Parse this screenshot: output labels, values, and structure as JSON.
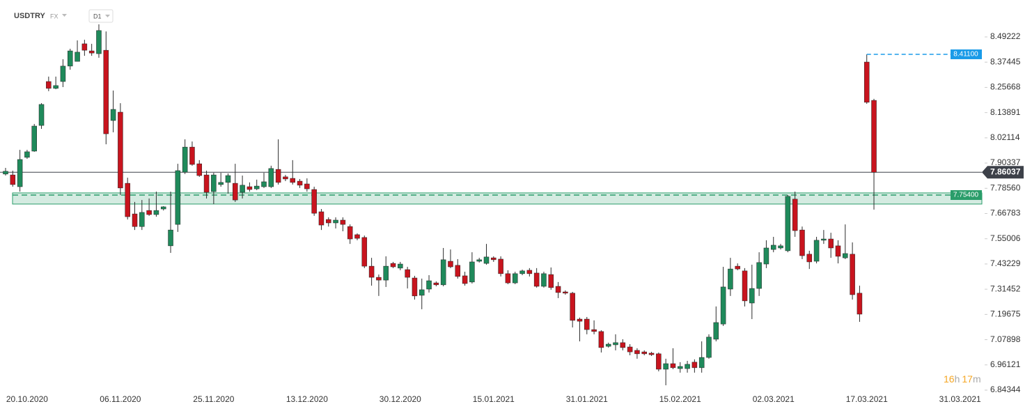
{
  "header": {
    "symbol": "USDTRY",
    "market": "FX",
    "interval": "D1"
  },
  "countdown": [
    "16",
    "h",
    "17",
    "m"
  ],
  "chart_data": {
    "type": "candlestick",
    "up_color": "#1f8a5b",
    "down_color": "#c8141e",
    "wick_color": "#2b2b2b",
    "ylim": [
      6.837,
      8.567
    ],
    "yticks": [
      8.49222,
      8.37445,
      8.25668,
      8.13891,
      8.02114,
      7.90337,
      {
        "value": 7.7856,
        "label": "7.78560"
      },
      7.66783,
      7.55006,
      7.43229,
      7.31452,
      7.19675,
      7.07898,
      6.96121,
      6.84344
    ],
    "grid": false,
    "current_price": {
      "value": 7.86037,
      "label": "7.86037",
      "color": "#3d4149"
    },
    "high_line": {
      "value": 8.411,
      "label": "8.41100",
      "color": "#1a9be8"
    },
    "zone": {
      "value": 7.754,
      "label": "7.75400",
      "top": 7.764,
      "bottom": 7.712,
      "color": "#2a9d6a"
    },
    "categories": [
      null,
      null,
      null,
      "20.10.2020",
      null,
      null,
      null,
      null,
      null,
      null,
      null,
      null,
      null,
      null,
      null,
      null,
      "06.11.2020",
      null,
      null,
      null,
      null,
      null,
      null,
      null,
      null,
      null,
      null,
      null,
      null,
      "25.11.2020",
      null,
      null,
      null,
      null,
      null,
      null,
      null,
      null,
      null,
      null,
      null,
      null,
      "13.12.2020",
      null,
      null,
      null,
      null,
      null,
      null,
      null,
      null,
      null,
      null,
      null,
      null,
      "30.12.2020",
      null,
      null,
      null,
      null,
      null,
      null,
      null,
      null,
      null,
      null,
      null,
      null,
      "15.01.2021",
      null,
      null,
      null,
      null,
      null,
      null,
      null,
      null,
      null,
      null,
      null,
      null,
      "31.01.2021",
      null,
      null,
      null,
      null,
      null,
      null,
      null,
      null,
      null,
      null,
      null,
      null,
      "15.02.2021",
      null,
      null,
      null,
      null,
      null,
      null,
      null,
      null,
      null,
      null,
      null,
      null,
      "02.03.2021",
      null,
      null,
      null,
      null,
      null,
      null,
      null,
      null,
      null,
      null,
      null,
      null,
      "17.03.2021",
      null,
      null,
      null,
      null,
      null,
      null,
      null,
      null,
      null,
      null,
      null,
      null,
      "31.03.2021"
    ],
    "open": [
      7.852,
      7.848,
      7.793,
      7.93,
      7.959,
      8.079,
      8.284,
      8.252,
      8.284,
      8.356,
      8.378,
      8.46,
      8.427,
      8.414,
      8.43,
      8.102,
      8.141,
      7.809,
      7.666,
      7.607,
      7.682,
      7.663,
      7.689,
      7.517,
      7.617,
      7.861,
      7.978,
      7.9,
      7.848,
      7.77,
      7.803,
      7.813,
      7.809,
      7.767,
      7.793,
      7.783,
      7.793,
      7.793,
      7.874,
      7.839,
      7.832,
      7.819,
      7.806,
      7.78,
      7.676,
      7.64,
      7.624,
      7.637,
      7.607,
      7.569,
      7.556,
      7.422,
      7.37,
      7.357,
      7.435,
      7.413,
      7.406,
      7.367,
      7.286,
      7.315,
      7.344,
      7.335,
      7.445,
      7.426,
      7.377,
      7.348,
      7.445,
      7.435,
      7.461,
      7.455,
      7.387,
      7.344,
      7.387,
      7.403,
      7.39,
      7.328,
      7.383,
      7.328,
      7.302,
      7.296,
      7.175,
      7.175,
      7.126,
      7.117,
      7.048,
      7.055,
      7.065,
      7.045,
      7.029,
      7.022,
      7.016,
      7.013,
      6.941,
      6.967,
      6.944,
      6.944,
      6.974,
      6.948,
      6.996,
      7.081,
      7.152,
      7.315,
      7.422,
      7.4,
      7.25,
      7.318,
      7.432,
      7.5,
      7.507,
      7.494,
      7.735,
      7.591,
      7.478,
      7.445,
      7.543,
      7.549,
      7.517,
      7.461,
      7.478,
      7.296,
      8.375,
      8.196,
      null,
      null,
      null,
      null,
      null,
      null,
      null,
      null,
      null,
      null,
      null,
      null
    ],
    "high": [
      7.881,
      7.868,
      7.965,
      7.965,
      8.086,
      8.183,
      8.307,
      8.307,
      8.388,
      8.437,
      8.476,
      8.479,
      8.46,
      8.551,
      8.518,
      8.242,
      8.183,
      7.835,
      7.722,
      7.731,
      7.738,
      7.77,
      7.702,
      7.77,
      7.9,
      8.014,
      8.004,
      7.917,
      7.868,
      7.858,
      7.858,
      7.855,
      7.9,
      7.845,
      7.813,
      7.826,
      7.858,
      7.891,
      8.014,
      7.848,
      7.917,
      7.829,
      7.832,
      7.793,
      7.689,
      7.65,
      7.65,
      7.65,
      7.617,
      7.575,
      7.565,
      7.461,
      7.383,
      7.468,
      7.442,
      7.442,
      7.419,
      7.377,
      7.364,
      7.38,
      7.351,
      7.507,
      7.5,
      7.455,
      7.396,
      7.487,
      7.461,
      7.526,
      7.468,
      7.468,
      7.403,
      7.396,
      7.406,
      7.413,
      7.413,
      7.396,
      7.416,
      7.348,
      7.309,
      7.302,
      7.182,
      7.185,
      7.169,
      7.123,
      7.065,
      7.104,
      7.081,
      7.058,
      7.039,
      7.029,
      7.022,
      7.019,
      6.99,
      7.039,
      6.974,
      6.98,
      6.987,
      7.071,
      7.104,
      7.234,
      7.419,
      7.461,
      7.435,
      7.413,
      7.429,
      7.487,
      7.543,
      7.559,
      7.526,
      7.754,
      7.77,
      7.607,
      7.494,
      7.559,
      7.591,
      7.578,
      7.543,
      7.617,
      7.533,
      7.331,
      8.411,
      8.203,
      null,
      null,
      null,
      null,
      null,
      null,
      null,
      null,
      null,
      null,
      null,
      null
    ],
    "low": [
      7.845,
      7.793,
      7.77,
      7.923,
      7.956,
      8.063,
      8.239,
      8.248,
      8.258,
      8.339,
      8.378,
      8.404,
      8.404,
      8.395,
      7.991,
      8.047,
      7.754,
      7.64,
      7.591,
      7.591,
      7.657,
      7.653,
      7.682,
      7.484,
      7.582,
      7.852,
      7.891,
      7.839,
      7.738,
      7.712,
      7.793,
      7.761,
      7.722,
      7.738,
      7.77,
      7.777,
      7.787,
      7.787,
      7.803,
      7.819,
      7.803,
      7.787,
      7.77,
      7.657,
      7.591,
      7.607,
      7.598,
      7.585,
      7.526,
      7.543,
      7.413,
      7.331,
      7.283,
      7.325,
      7.413,
      7.403,
      7.318,
      7.266,
      7.221,
      7.299,
      7.328,
      7.328,
      7.413,
      7.364,
      7.331,
      7.341,
      7.439,
      7.429,
      7.442,
      7.374,
      7.338,
      7.338,
      7.38,
      7.374,
      7.322,
      7.322,
      7.312,
      7.273,
      7.289,
      7.136,
      7.071,
      7.104,
      7.104,
      7.019,
      7.042,
      7.029,
      7.029,
      7.006,
      6.99,
      7.006,
      7.003,
      6.931,
      6.866,
      6.941,
      6.925,
      6.925,
      6.925,
      6.925,
      6.99,
      7.071,
      7.143,
      7.283,
      7.403,
      7.234,
      7.175,
      7.283,
      7.413,
      7.487,
      7.5,
      7.487,
      7.559,
      7.455,
      7.409,
      7.435,
      7.526,
      7.461,
      7.435,
      7.455,
      7.266,
      7.162,
      8.18,
      7.686,
      null,
      null,
      null,
      null,
      null,
      null,
      null,
      null,
      null,
      null,
      null,
      null
    ],
    "close": [
      7.865,
      7.803,
      7.92,
      7.956,
      8.076,
      8.177,
      8.252,
      8.265,
      8.356,
      8.427,
      8.421,
      8.43,
      8.417,
      8.522,
      8.04,
      8.154,
      7.787,
      7.653,
      7.607,
      7.673,
      7.663,
      7.682,
      7.699,
      7.591,
      7.868,
      7.978,
      7.897,
      7.845,
      7.767,
      7.848,
      7.813,
      7.845,
      7.731,
      7.8,
      7.78,
      7.796,
      7.816,
      7.878,
      7.813,
      7.829,
      7.813,
      7.8,
      7.783,
      7.669,
      7.614,
      7.624,
      7.637,
      7.617,
      7.549,
      7.552,
      7.422,
      7.37,
      7.357,
      7.422,
      7.419,
      7.432,
      7.37,
      7.283,
      7.312,
      7.354,
      7.335,
      7.452,
      7.419,
      7.374,
      7.341,
      7.442,
      7.452,
      7.465,
      7.452,
      7.387,
      7.344,
      7.387,
      7.4,
      7.387,
      7.328,
      7.387,
      7.322,
      7.299,
      7.296,
      7.169,
      7.165,
      7.126,
      7.117,
      7.042,
      7.058,
      7.065,
      7.042,
      7.022,
      7.013,
      7.013,
      7.009,
      6.941,
      6.967,
      6.948,
      6.954,
      6.964,
      6.948,
      6.996,
      7.091,
      7.159,
      7.325,
      7.409,
      7.409,
      7.26,
      7.318,
      7.439,
      7.507,
      7.52,
      7.517,
      7.748,
      7.588,
      7.471,
      7.442,
      7.543,
      7.549,
      7.507,
      7.468,
      7.481,
      7.289,
      7.198,
      8.187,
      7.86037,
      null,
      null,
      null,
      null,
      null,
      null,
      null,
      null,
      null,
      null,
      null,
      null
    ]
  }
}
